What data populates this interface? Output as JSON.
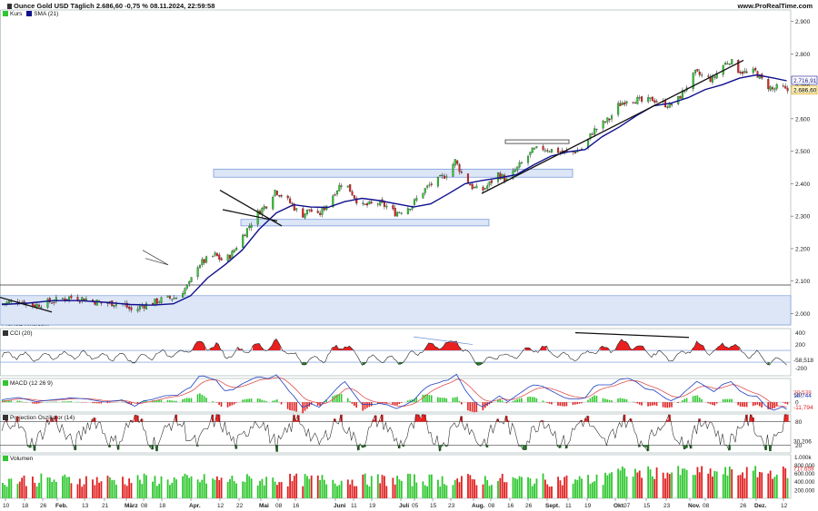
{
  "header": {
    "title": "Ounce Gold USD Täglich 2.686,60 -0,75 % 08.11.2024, 22:59:58",
    "site": "www.ProRealTime.com"
  },
  "watermark": "ProRealTime.com",
  "colors": {
    "up": "#2fc72f",
    "down": "#e02020",
    "sma": "#10108e",
    "band": "#dce6f7",
    "bandEdge": "#6a8fd6",
    "cci_fill": "#e82020",
    "cci_neg": "#2a7a2a",
    "macd_line": "#2040c0",
    "macd_signal": "#e05050"
  },
  "chart_data": [
    {
      "type": "candlestick",
      "title": "Ounce Gold USD Täglich",
      "legend": [
        "Kurs",
        "SMA (21)"
      ],
      "y_ticks": [
        "2.900",
        "2.800",
        "2.700",
        "2.600",
        "2.500",
        "2.400",
        "2.300",
        "2.200",
        "2.100",
        "2.000"
      ],
      "ylim": [
        1965,
        2935
      ],
      "price_labels": {
        "sma": "2.716,91",
        "last": "2.686,60"
      },
      "x_ticks": [
        "10",
        "18",
        "26",
        "Feb.",
        "13",
        "21",
        "März",
        "08",
        "18",
        "Apr.",
        "12",
        "22",
        "Mai",
        "08",
        "16",
        "Juni",
        "11",
        "19",
        "Juli",
        "05",
        "15",
        "23",
        "Aug.",
        "08",
        "16",
        "26",
        "Sept.",
        "11",
        "19",
        "Okt.",
        "07",
        "15",
        "23",
        "Nov.",
        "08",
        "26",
        "Dez.",
        "12"
      ],
      "close_path": [
        [
          0,
          2030
        ],
        [
          8,
          2040
        ],
        [
          16,
          2025
        ],
        [
          24,
          2038
        ],
        [
          32,
          2050
        ],
        [
          40,
          2045
        ],
        [
          48,
          2030
        ],
        [
          56,
          2035
        ],
        [
          62,
          2005
        ],
        [
          66,
          2025
        ],
        [
          70,
          2030
        ],
        [
          76,
          2045
        ],
        [
          82,
          2050
        ],
        [
          88,
          2090
        ],
        [
          92,
          2150
        ],
        [
          96,
          2165
        ],
        [
          100,
          2180
        ],
        [
          104,
          2160
        ],
        [
          108,
          2185
        ],
        [
          112,
          2230
        ],
        [
          116,
          2270
        ],
        [
          120,
          2310
        ],
        [
          124,
          2335
        ],
        [
          128,
          2380
        ],
        [
          132,
          2360
        ],
        [
          136,
          2335
        ],
        [
          140,
          2300
        ],
        [
          144,
          2320
        ],
        [
          148,
          2300
        ],
        [
          152,
          2335
        ],
        [
          156,
          2375
        ],
        [
          160,
          2410
        ],
        [
          164,
          2370
        ],
        [
          168,
          2330
        ],
        [
          172,
          2335
        ],
        [
          176,
          2340
        ],
        [
          180,
          2330
        ],
        [
          184,
          2310
        ],
        [
          188,
          2320
        ],
        [
          192,
          2335
        ],
        [
          196,
          2370
        ],
        [
          200,
          2395
        ],
        [
          204,
          2410
        ],
        [
          208,
          2430
        ],
        [
          212,
          2470
        ],
        [
          216,
          2420
        ],
        [
          220,
          2390
        ],
        [
          224,
          2375
        ],
        [
          228,
          2400
        ],
        [
          232,
          2430
        ],
        [
          236,
          2410
        ],
        [
          240,
          2440
        ],
        [
          244,
          2470
        ],
        [
          248,
          2500
        ],
        [
          252,
          2510
        ],
        [
          256,
          2505
        ],
        [
          260,
          2500
        ],
        [
          264,
          2495
        ],
        [
          268,
          2500
        ],
        [
          272,
          2510
        ],
        [
          276,
          2560
        ],
        [
          280,
          2580
        ],
        [
          284,
          2600
        ],
        [
          288,
          2640
        ],
        [
          292,
          2660
        ],
        [
          296,
          2660
        ],
        [
          300,
          2650
        ],
        [
          304,
          2660
        ],
        [
          308,
          2650
        ],
        [
          312,
          2640
        ],
        [
          316,
          2660
        ],
        [
          320,
          2700
        ],
        [
          324,
          2740
        ],
        [
          328,
          2730
        ],
        [
          332,
          2720
        ],
        [
          336,
          2760
        ],
        [
          340,
          2780
        ],
        [
          344,
          2750
        ],
        [
          348,
          2740
        ],
        [
          352,
          2745
        ],
        [
          356,
          2710
        ],
        [
          360,
          2690
        ],
        [
          364,
          2700
        ],
        [
          366,
          2687
        ]
      ],
      "sma_path": [
        [
          0,
          2028
        ],
        [
          12,
          2032
        ],
        [
          24,
          2040
        ],
        [
          36,
          2040
        ],
        [
          48,
          2035
        ],
        [
          60,
          2028
        ],
        [
          70,
          2026
        ],
        [
          80,
          2030
        ],
        [
          88,
          2055
        ],
        [
          96,
          2110
        ],
        [
          104,
          2150
        ],
        [
          112,
          2195
        ],
        [
          120,
          2260
        ],
        [
          128,
          2310
        ],
        [
          136,
          2335
        ],
        [
          144,
          2328
        ],
        [
          152,
          2327
        ],
        [
          160,
          2345
        ],
        [
          168,
          2355
        ],
        [
          176,
          2348
        ],
        [
          184,
          2338
        ],
        [
          192,
          2328
        ],
        [
          200,
          2338
        ],
        [
          208,
          2368
        ],
        [
          216,
          2400
        ],
        [
          224,
          2410
        ],
        [
          232,
          2418
        ],
        [
          240,
          2428
        ],
        [
          248,
          2458
        ],
        [
          256,
          2485
        ],
        [
          264,
          2498
        ],
        [
          272,
          2505
        ],
        [
          280,
          2545
        ],
        [
          288,
          2575
        ],
        [
          296,
          2610
        ],
        [
          304,
          2640
        ],
        [
          312,
          2648
        ],
        [
          320,
          2665
        ],
        [
          328,
          2690
        ],
        [
          336,
          2705
        ],
        [
          344,
          2725
        ],
        [
          352,
          2735
        ],
        [
          360,
          2725
        ],
        [
          366,
          2717
        ]
      ],
      "volume_ticks": [
        "1.000k",
        "800.000",
        "600.000",
        "400.000",
        "200.000"
      ],
      "volume_last": "717.659"
    },
    {
      "type": "line",
      "title": "CCI (20)",
      "y_ticks": [
        "400",
        "200",
        "-200"
      ],
      "ylim": [
        -330,
        470
      ],
      "last_value": "-58,518",
      "bands": [
        100,
        -100
      ]
    },
    {
      "type": "line",
      "title": "MACD (12 26 9)",
      "y_ticks": [
        "20",
        "0"
      ],
      "ylim": [
        -25,
        60
      ],
      "last_values": [
        "20,538",
        "18,744",
        "-11,794"
      ]
    },
    {
      "type": "line",
      "title": "Projection Oszillator (14)",
      "y_ticks": [
        "80",
        "20"
      ],
      "ylim": [
        0,
        100
      ],
      "last_value": "30,206"
    }
  ]
}
